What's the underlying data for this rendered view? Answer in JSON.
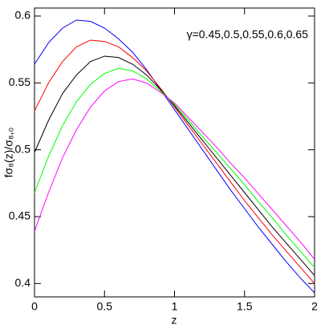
{
  "chart_data": {
    "type": "line",
    "xlabel": "z",
    "ylabel": "fσ₈(z)/σ₈,₀",
    "annotation": "γ=0.45,0.5,0.55,0.6,0.65",
    "x": [
      0,
      0.1,
      0.2,
      0.3,
      0.4,
      0.5,
      0.6,
      0.7,
      0.8,
      0.9,
      1.0,
      1.1,
      1.2,
      1.3,
      1.4,
      1.5,
      1.6,
      1.7,
      1.8,
      1.9,
      2.0
    ],
    "series": [
      {
        "color": "#0000ff",
        "values": [
          0.564,
          0.58,
          0.591,
          0.597,
          0.596,
          0.591,
          0.583,
          0.573,
          0.56,
          0.545,
          0.53,
          0.515,
          0.5,
          0.485,
          0.47,
          0.456,
          0.442,
          0.429,
          0.416,
          0.404,
          0.393
        ]
      },
      {
        "color": "#ff0000",
        "values": [
          0.529,
          0.55,
          0.566,
          0.577,
          0.582,
          0.581,
          0.577,
          0.569,
          0.559,
          0.546,
          0.532,
          0.518,
          0.504,
          0.49,
          0.476,
          0.462,
          0.449,
          0.436,
          0.424,
          0.412,
          0.4
        ]
      },
      {
        "color": "#000000",
        "values": [
          0.498,
          0.522,
          0.542,
          0.556,
          0.566,
          0.57,
          0.569,
          0.564,
          0.556,
          0.545,
          0.533,
          0.52,
          0.507,
          0.494,
          0.481,
          0.468,
          0.455,
          0.442,
          0.43,
          0.418,
          0.406
        ]
      },
      {
        "color": "#00ff00",
        "values": [
          0.468,
          0.495,
          0.518,
          0.536,
          0.549,
          0.557,
          0.561,
          0.559,
          0.553,
          0.544,
          0.534,
          0.522,
          0.51,
          0.498,
          0.486,
          0.474,
          0.461,
          0.449,
          0.436,
          0.424,
          0.412
        ]
      },
      {
        "color": "#ff00ff",
        "values": [
          0.439,
          0.468,
          0.494,
          0.515,
          0.532,
          0.544,
          0.551,
          0.553,
          0.55,
          0.543,
          0.535,
          0.524,
          0.513,
          0.502,
          0.49,
          0.479,
          0.467,
          0.455,
          0.443,
          0.431,
          0.418
        ]
      }
    ],
    "xlim": [
      0,
      2
    ],
    "xticks": [
      0,
      0.5,
      1,
      1.5,
      2
    ],
    "ylim": [
      0.39,
      0.606
    ],
    "yticks": [
      0.4,
      0.45,
      0.5,
      0.55,
      0.6
    ]
  }
}
